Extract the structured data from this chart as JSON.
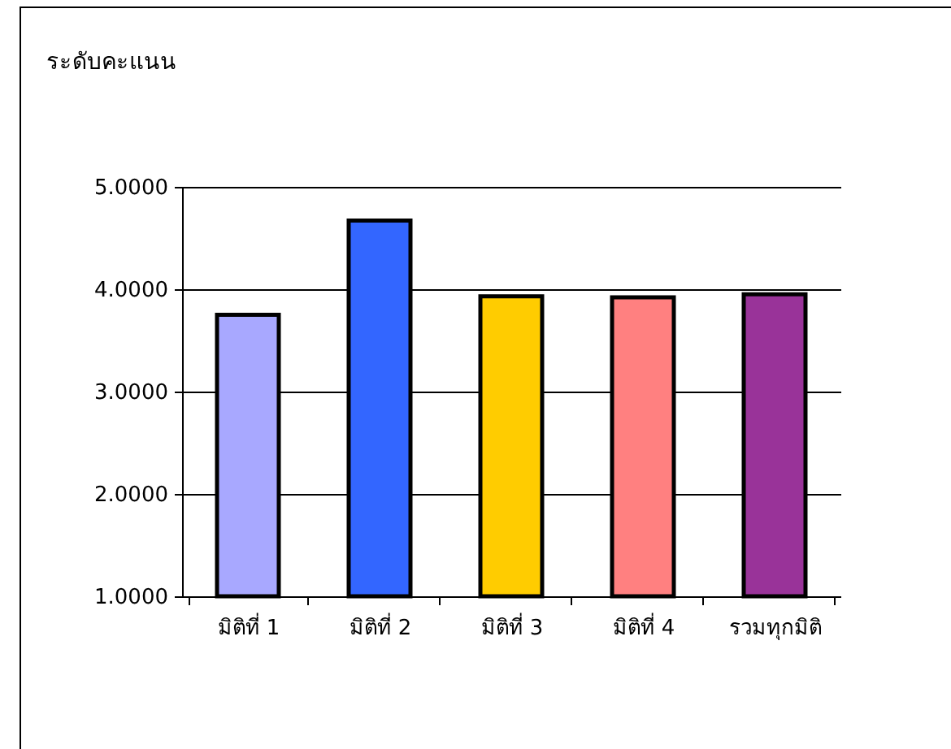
{
  "chart_data": {
    "type": "bar",
    "ylabel": "ระดับคะแนน",
    "categories": [
      "มิติที่ 1",
      "มิติที่ 2",
      "มิติที่ 3",
      "มิติที่ 4",
      "รวมทุกมิติ"
    ],
    "values": [
      3.75,
      4.67,
      3.93,
      3.92,
      3.95
    ],
    "colors": [
      "#a8a8ff",
      "#3366ff",
      "#ffcc00",
      "#ff8080",
      "#993399"
    ],
    "ylim": [
      1,
      5
    ],
    "yticks": [
      {
        "value": 1,
        "label": "1.0000"
      },
      {
        "value": 2,
        "label": "2.0000"
      },
      {
        "value": 3,
        "label": "3.0000"
      },
      {
        "value": 4,
        "label": "4.0000"
      },
      {
        "value": 5,
        "label": "5.0000"
      }
    ],
    "grid": "y"
  }
}
